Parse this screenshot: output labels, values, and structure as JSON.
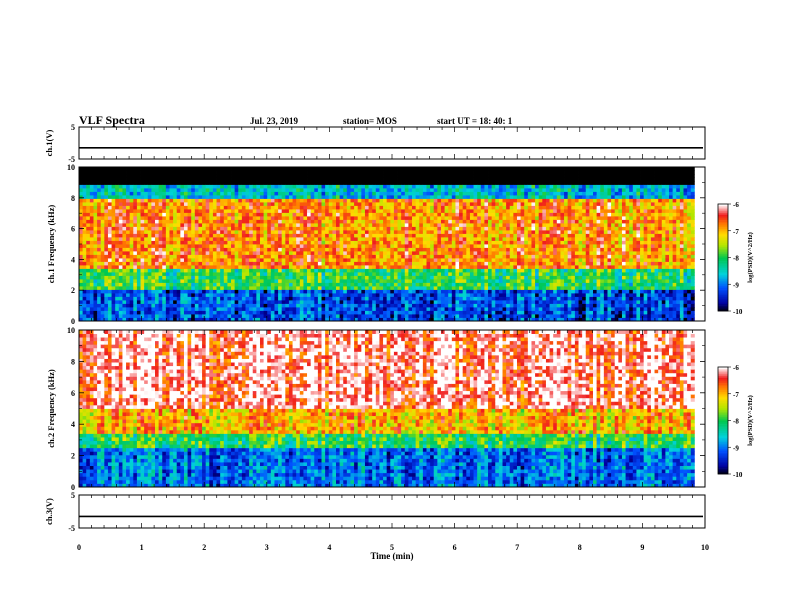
{
  "header": {
    "title": "VLF Spectra",
    "date": "Jul. 23, 2019",
    "station": "station= MOS",
    "start": "start UT = 18: 40: 1"
  },
  "chart_data": [
    {
      "type": "line",
      "panel": "ch1-waveform",
      "ylabel": "ch.1(V)",
      "ylim": [
        -5,
        5
      ],
      "yticks": [
        "5",
        "-5"
      ],
      "xlim": [
        0,
        10
      ],
      "series_level": -1.5
    },
    {
      "type": "heatmap",
      "panel": "ch1-spectrogram",
      "ylabel": "ch.1 Frequency (kHz)",
      "ylim": [
        0,
        10
      ],
      "yticks": [
        "0",
        "2",
        "4",
        "6",
        "8",
        "10"
      ],
      "xlim": [
        0,
        10
      ],
      "data_end_min": 9.83,
      "bands": [
        {
          "from_khz": 0,
          "to_khz": 2.0,
          "level": -9.2
        },
        {
          "from_khz": 2.0,
          "to_khz": 3.3,
          "level": -8.0
        },
        {
          "from_khz": 3.3,
          "to_khz": 8.0,
          "level": -6.8
        },
        {
          "from_khz": 8.0,
          "to_khz": 8.9,
          "level": -8.6
        },
        {
          "from_khz": 8.9,
          "to_khz": 10,
          "level": -10,
          "note": "no data"
        }
      ],
      "colorbar": {
        "label": "log(PSD)(V^2/Hz)",
        "range": [
          -10,
          -6
        ],
        "ticks": [
          "-6",
          "-7",
          "-8",
          "-9",
          "-10"
        ]
      }
    },
    {
      "type": "heatmap",
      "panel": "ch2-spectrogram",
      "ylabel": "ch.2 Frequency (kHz)",
      "ylim": [
        0,
        10
      ],
      "yticks": [
        "0",
        "2",
        "4",
        "6",
        "8",
        "10"
      ],
      "xlim": [
        0,
        10
      ],
      "data_end_min": 9.83,
      "bands": [
        {
          "from_khz": 0,
          "to_khz": 2.5,
          "level": -9.0
        },
        {
          "from_khz": 2.5,
          "to_khz": 3.5,
          "level": -8.0
        },
        {
          "from_khz": 3.5,
          "to_khz": 5.0,
          "level": -7.0
        },
        {
          "from_khz": 5.0,
          "to_khz": 10,
          "level": -6.2
        }
      ],
      "colorbar": {
        "label": "log(PSD)(V^2/Hz)",
        "range": [
          -10,
          -6
        ],
        "ticks": [
          "-6",
          "-7",
          "-8",
          "-9",
          "-10"
        ]
      }
    },
    {
      "type": "line",
      "panel": "ch3-waveform",
      "ylabel": "ch.3(V)",
      "ylim": [
        -5,
        5
      ],
      "yticks": [
        "5",
        "-5"
      ],
      "xlim": [
        0,
        10
      ],
      "series_level": -1.5
    }
  ],
  "xaxis": {
    "label": "Time (min)",
    "ticks": [
      "0",
      "1",
      "2",
      "3",
      "4",
      "5",
      "6",
      "7",
      "8",
      "9",
      "10"
    ]
  }
}
